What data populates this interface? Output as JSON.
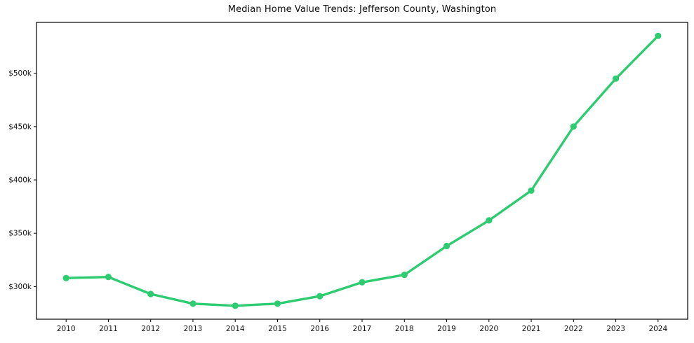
{
  "window": {
    "title": "Median Home Value Trends: Jefferson County, Washington"
  },
  "chart_data": {
    "type": "line",
    "title": "Median Home Value Trends: Jefferson County, Washington",
    "x": [
      2010,
      2011,
      2012,
      2013,
      2014,
      2015,
      2016,
      2017,
      2018,
      2019,
      2020,
      2021,
      2022,
      2023,
      2024
    ],
    "x_tick_labels": [
      "2010",
      "2011",
      "2012",
      "2013",
      "2014",
      "2015",
      "2016",
      "2017",
      "2018",
      "2019",
      "2020",
      "2021",
      "2022",
      "2023",
      "2024"
    ],
    "series": [
      {
        "name": "Median home value",
        "values": [
          308,
          309,
          293,
          284,
          282,
          284,
          291,
          304,
          311,
          338,
          362,
          390,
          450,
          495,
          535
        ],
        "unit": "USD thousands",
        "color": "#2ecc71",
        "marker": "circle"
      }
    ],
    "y_ticks": [
      300,
      350,
      400,
      450,
      500
    ],
    "y_tick_labels": [
      "$300k",
      "$350k",
      "$400k",
      "$450k",
      "$500k"
    ],
    "xlim": [
      2009.3,
      2024.7
    ],
    "ylim": [
      269.4,
      547.7
    ],
    "xlabel": "",
    "ylabel": "",
    "grid": false,
    "legend_position": "none",
    "axis_color": "#000000",
    "tick_label_color": "#111111",
    "background_color": "#ffffff"
  }
}
